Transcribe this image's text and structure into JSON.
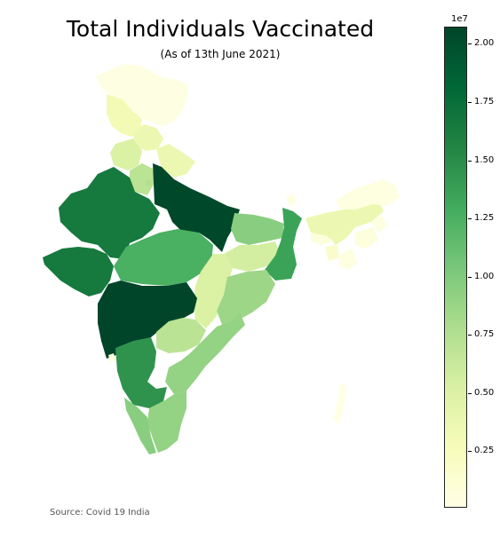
{
  "title": "Total Individuals Vaccinated",
  "subtitle": "(As of 13th June 2021)",
  "source": "Source: Covid 19 India",
  "colorbar": {
    "exponent_label": "1e7",
    "ticks": [
      "2.00",
      "1.75",
      "1.50",
      "1.25",
      "1.00",
      "0.75",
      "0.50",
      "0.25"
    ],
    "colors": [
      "#ffffe5",
      "#f7fcb9",
      "#d9f0a3",
      "#addd8e",
      "#78c679",
      "#41ab5d",
      "#238443",
      "#006837",
      "#004529"
    ]
  },
  "chart_data": {
    "type": "choropleth",
    "title": "Total Individuals Vaccinated",
    "subtitle": "(As of 13th June 2021)",
    "color_scale": "YlGn",
    "unit_multiplier": "1e7",
    "range": [
      0,
      2.07
    ],
    "regions": [
      {
        "name": "Ladakh",
        "value": 0.02
      },
      {
        "name": "Jammu and Kashmir",
        "value": 0.3
      },
      {
        "name": "Himachal Pradesh",
        "value": 0.35
      },
      {
        "name": "Punjab",
        "value": 0.5
      },
      {
        "name": "Uttarakhand",
        "value": 0.35
      },
      {
        "name": "Haryana",
        "value": 0.7
      },
      {
        "name": "Rajasthan",
        "value": 1.65
      },
      {
        "name": "Uttar Pradesh",
        "value": 2.05
      },
      {
        "name": "Bihar",
        "value": 0.95
      },
      {
        "name": "Gujarat",
        "value": 1.65
      },
      {
        "name": "Madhya Pradesh",
        "value": 1.25
      },
      {
        "name": "Jharkhand",
        "value": 0.55
      },
      {
        "name": "West Bengal",
        "value": 1.35
      },
      {
        "name": "Chhattisgarh",
        "value": 0.5
      },
      {
        "name": "Odisha",
        "value": 0.85
      },
      {
        "name": "Maharashtra",
        "value": 2.07
      },
      {
        "name": "Telangana",
        "value": 0.7
      },
      {
        "name": "Andhra Pradesh",
        "value": 0.9
      },
      {
        "name": "Karnataka",
        "value": 1.45
      },
      {
        "name": "Kerala",
        "value": 0.95
      },
      {
        "name": "Tamil Nadu",
        "value": 0.9
      },
      {
        "name": "Goa",
        "value": 0.05
      },
      {
        "name": "Sikkim",
        "value": 0.02
      },
      {
        "name": "Assam",
        "value": 0.35
      },
      {
        "name": "Arunachal Pradesh",
        "value": 0.03
      },
      {
        "name": "Nagaland",
        "value": 0.03
      },
      {
        "name": "Manipur",
        "value": 0.05
      },
      {
        "name": "Mizoram",
        "value": 0.03
      },
      {
        "name": "Tripura",
        "value": 0.15
      },
      {
        "name": "Meghalaya",
        "value": 0.05
      },
      {
        "name": "Delhi",
        "value": 0.75
      },
      {
        "name": "Andaman and Nicobar Islands",
        "value": 0.01
      }
    ]
  }
}
